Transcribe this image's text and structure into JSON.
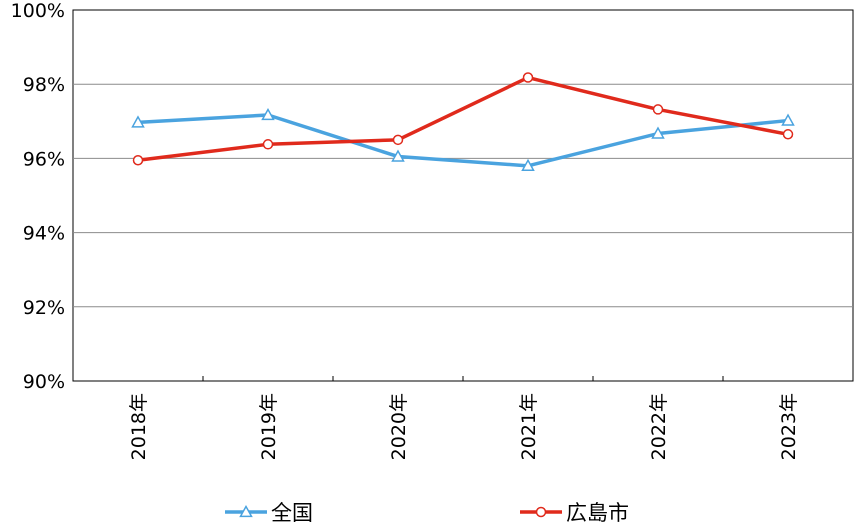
{
  "chart_data": {
    "type": "line",
    "categories": [
      "2018年",
      "2019年",
      "2020年",
      "2021年",
      "2022年",
      "2023年"
    ],
    "series": [
      {
        "name": "全国",
        "values": [
          96.97,
          97.17,
          96.05,
          95.8,
          96.67,
          97.02
        ],
        "color": "#4aa3df",
        "marker": "triangle"
      },
      {
        "name": "広島市",
        "values": [
          95.95,
          96.38,
          96.5,
          98.18,
          97.32,
          96.65
        ],
        "color": "#e02a1c",
        "marker": "circle"
      }
    ],
    "ylim": [
      90,
      100
    ],
    "yticks": [
      "90%",
      "92%",
      "94%",
      "96%",
      "98%",
      "100%"
    ],
    "ytick_values": [
      90,
      92,
      94,
      96,
      98,
      100
    ],
    "grid": true,
    "legend_position": "bottom"
  }
}
